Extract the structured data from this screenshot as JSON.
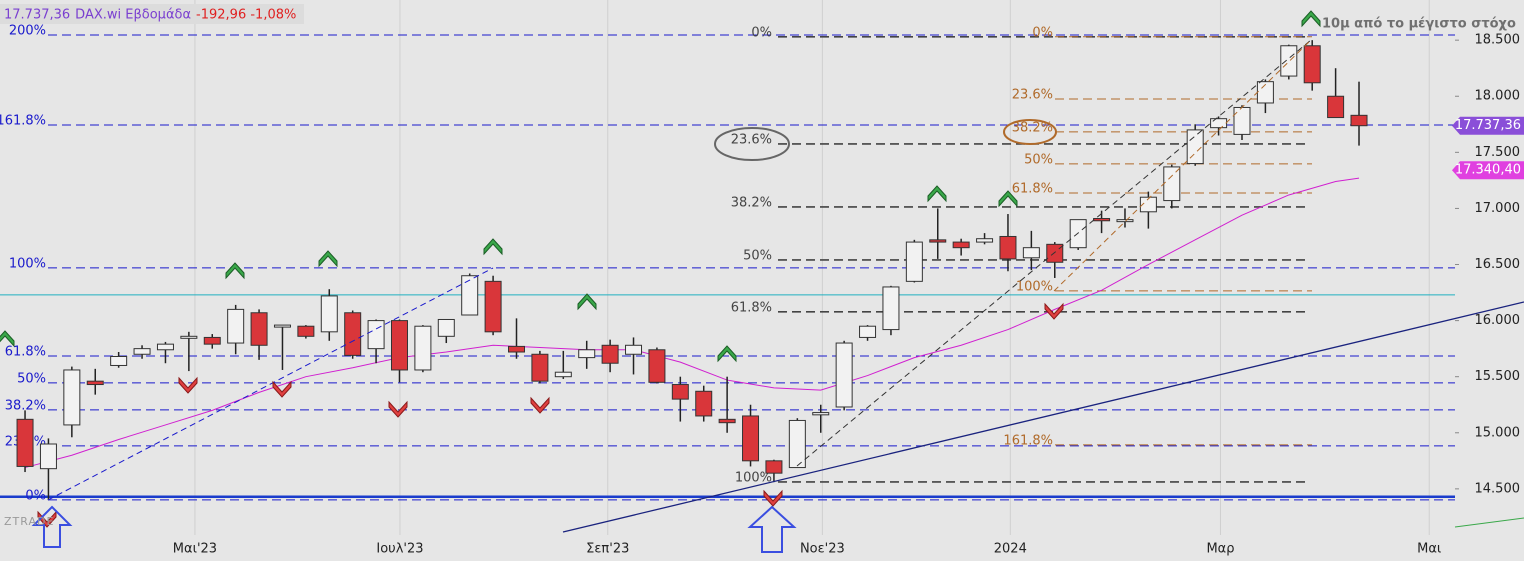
{
  "header": {
    "price": "17.737,36",
    "symbol": "DAX.wi Εβδομάδα",
    "change": "-192,96 -1,08%"
  },
  "chart_data": {
    "type": "candlestick",
    "open": [
      15120,
      14680,
      15070,
      15460,
      15600,
      15700,
      15740,
      15850,
      15850,
      15800,
      16070,
      15950,
      15950,
      15900,
      16070,
      15750,
      16000,
      15560,
      15860,
      16050,
      16350,
      15770,
      15700,
      15500,
      15670,
      15780,
      15700,
      15740,
      15430,
      15370,
      15120,
      15150,
      14750,
      14690,
      15160,
      15230,
      15850,
      15920,
      16350,
      16720,
      16700,
      16700,
      16750,
      16560,
      16680,
      16650,
      16910,
      16890,
      16970,
      17070,
      17400,
      17720,
      17660,
      17940,
      18180,
      18450,
      18000,
      17830
    ],
    "high": [
      15200,
      14950,
      15590,
      15570,
      15720,
      15780,
      15810,
      15900,
      15880,
      16140,
      16100,
      15960,
      15960,
      16280,
      16090,
      16010,
      16010,
      15960,
      16010,
      16420,
      16400,
      16020,
      15730,
      15730,
      15820,
      15830,
      15850,
      15760,
      15500,
      15420,
      15500,
      15250,
      14760,
      15130,
      15250,
      15820,
      15960,
      16310,
      16720,
      17000,
      16730,
      16780,
      16950,
      16800,
      16700,
      16900,
      16980,
      17000,
      17150,
      17390,
      17750,
      17820,
      17920,
      18150,
      18460,
      18500,
      18250,
      18130
    ],
    "low": [
      14650,
      14400,
      14960,
      15340,
      15580,
      15660,
      15620,
      15550,
      15750,
      15700,
      15650,
      15560,
      15840,
      15820,
      15660,
      15620,
      15450,
      15540,
      15800,
      16050,
      15870,
      15660,
      15440,
      15480,
      15570,
      15540,
      15520,
      15440,
      15100,
      15100,
      15000,
      14700,
      14560,
      14690,
      15000,
      15200,
      15820,
      15870,
      16340,
      16550,
      16580,
      16680,
      16440,
      16450,
      16380,
      16630,
      16780,
      16830,
      16820,
      17000,
      17380,
      17650,
      17610,
      17850,
      18150,
      18050,
      17810,
      17560
    ],
    "close": [
      14700,
      14900,
      15560,
      15430,
      15680,
      15750,
      15790,
      15860,
      15790,
      16100,
      15780,
      15960,
      15860,
      16220,
      15690,
      16000,
      15560,
      15950,
      16010,
      16400,
      15900,
      15720,
      15460,
      15540,
      15740,
      15620,
      15780,
      15450,
      15300,
      15150,
      15090,
      14750,
      14640,
      15110,
      15180,
      15800,
      15950,
      16300,
      16700,
      16700,
      16650,
      16730,
      16550,
      16650,
      16520,
      16900,
      16890,
      16900,
      17100,
      17370,
      17700,
      17800,
      17900,
      18130,
      18450,
      18120,
      17810,
      17737.36
    ],
    "up_color": "#f2f2f2",
    "down_color": "#d9363a",
    "moving_average": {
      "color": "#d020d0",
      "x": [
        0,
        2,
        4,
        6,
        8,
        10,
        12,
        14,
        16,
        18,
        20,
        22,
        24,
        26,
        28,
        30,
        32,
        34,
        36,
        38,
        40,
        42,
        44,
        46,
        48,
        50,
        52,
        54,
        56,
        57
      ],
      "values": [
        14690,
        14800,
        14940,
        15070,
        15200,
        15360,
        15500,
        15580,
        15670,
        15720,
        15780,
        15760,
        15740,
        15740,
        15630,
        15470,
        15400,
        15380,
        15510,
        15670,
        15780,
        15920,
        16100,
        16270,
        16500,
        16720,
        16940,
        17120,
        17240,
        17270
      ]
    },
    "xlim": [
      -1.07,
      64.05
    ],
    "xticks": [
      {
        "value": 7.26,
        "label": "Μαι'23"
      },
      {
        "value": 16.02,
        "label": "Ιουλ'23"
      },
      {
        "value": 24.9,
        "label": "Σεπ'23"
      },
      {
        "value": 34.07,
        "label": "Νοε'23"
      },
      {
        "value": 42.1,
        "label": "2024"
      },
      {
        "value": 51.08,
        "label": "Μαρ"
      },
      {
        "value": 60.0,
        "label": "Μαι"
      }
    ],
    "ylim": [
      13857,
      18858
    ],
    "yticks": [
      {
        "value": 18500,
        "label": "18.500"
      },
      {
        "value": 18000,
        "label": "18.000"
      },
      {
        "value": 17500,
        "label": "17.500"
      },
      {
        "value": 17000,
        "label": "17.000"
      },
      {
        "value": 16500,
        "label": "16.500"
      },
      {
        "value": 16000,
        "label": "16.000"
      },
      {
        "value": 15500,
        "label": "15.500"
      },
      {
        "value": 15000,
        "label": "15.000"
      },
      {
        "value": 14500,
        "label": "14.500"
      }
    ],
    "fibs": [
      {
        "color": "#1a1acc",
        "labels": [
          "200%",
          "161.8%",
          "100%",
          "61.8%",
          "50%",
          "38.2%",
          "23.6%",
          "0%"
        ],
        "levels": [
          18546,
          17744,
          16470,
          15685,
          15445,
          15204,
          14883,
          14402
        ]
      },
      {
        "color": "#444444",
        "labels": [
          "0%",
          "23.6%",
          "38.2%",
          "50%",
          "61.8%",
          "100%"
        ],
        "levels": [
          18530,
          17575,
          17013,
          16541,
          16078,
          14562
        ]
      },
      {
        "color": "#b06a2a",
        "labels": [
          "0%",
          "23.6%",
          "38.2%",
          "50%",
          "61.8%",
          "100%",
          "161.8%"
        ],
        "levels": [
          18530,
          17976,
          17682,
          17397,
          17138,
          16265,
          14892
        ]
      }
    ],
    "lines": [
      {
        "value": 16229,
        "color": "#20b0c0"
      },
      {
        "value": 14430,
        "color": "#1a3ccc"
      }
    ],
    "price_labels": [
      {
        "value": 17737.36,
        "label": "17.737,36",
        "color": "#8a4fd8"
      },
      {
        "value": 17340.4,
        "label": "17.340,40",
        "color": "#e040e0"
      }
    ],
    "annotation": "10μ από το μέγιστο στόχο",
    "watermark": "ZTRADE"
  }
}
